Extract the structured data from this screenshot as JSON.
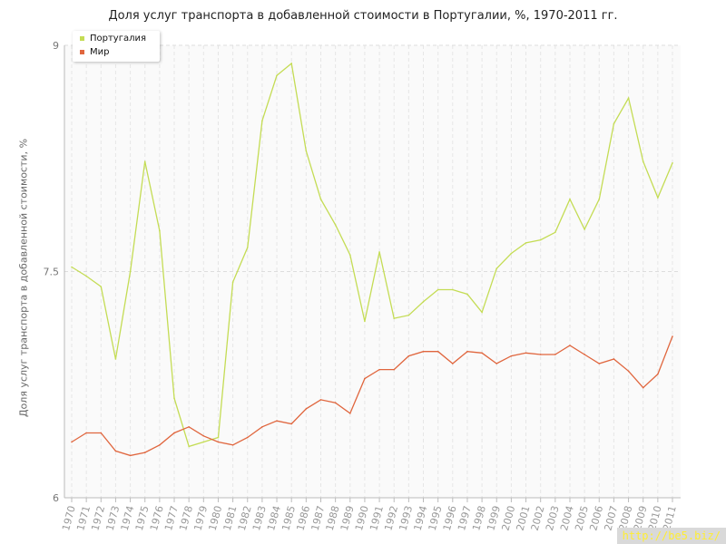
{
  "chart_data": {
    "type": "line",
    "title": "Доля услуг транспорта в добавленной стоимости в Португалии, %, 1970-2011 гг.",
    "xlabel": "",
    "ylabel": "Доля услуг транспорта в добавленной стоимости, %",
    "ylim": [
      6,
      9
    ],
    "yticks": [
      "6",
      "7.5",
      "9"
    ],
    "grid": true,
    "legend_position": "top-left",
    "categories": [
      "1970",
      "1971",
      "1972",
      "1973",
      "1974",
      "1975",
      "1976",
      "1977",
      "1978",
      "1979",
      "1980",
      "1981",
      "1982",
      "1983",
      "1984",
      "1985",
      "1986",
      "1987",
      "1988",
      "1989",
      "1990",
      "1991",
      "1992",
      "1993",
      "1994",
      "1995",
      "1996",
      "1997",
      "1998",
      "1999",
      "2000",
      "2001",
      "2002",
      "2003",
      "2004",
      "2005",
      "2006",
      "2007",
      "2008",
      "2009",
      "2010",
      "2011"
    ],
    "series": [
      {
        "name": "Португалия",
        "color": "#c4dc54",
        "values": [
          7.53,
          7.47,
          7.4,
          6.92,
          7.5,
          8.23,
          7.77,
          6.66,
          6.34,
          6.37,
          6.4,
          7.43,
          7.66,
          8.5,
          8.8,
          8.88,
          8.3,
          7.98,
          7.81,
          7.61,
          7.17,
          7.63,
          7.19,
          7.21,
          7.3,
          7.38,
          7.38,
          7.35,
          7.23,
          7.52,
          7.62,
          7.69,
          7.71,
          7.76,
          7.98,
          7.78,
          7.98,
          8.48,
          8.65,
          8.23,
          7.99,
          8.22
        ]
      },
      {
        "name": "Мир",
        "color": "#e0663e",
        "values": [
          6.37,
          6.43,
          6.43,
          6.31,
          6.28,
          6.3,
          6.35,
          6.43,
          6.47,
          6.41,
          6.37,
          6.35,
          6.4,
          6.47,
          6.51,
          6.49,
          6.59,
          6.65,
          6.63,
          6.56,
          6.79,
          6.85,
          6.85,
          6.94,
          6.97,
          6.97,
          6.89,
          6.97,
          6.96,
          6.89,
          6.94,
          6.96,
          6.95,
          6.95,
          7.01,
          6.95,
          6.89,
          6.92,
          6.84,
          6.73,
          6.82,
          7.07
        ]
      }
    ]
  },
  "watermark": "http://be5.biz/"
}
